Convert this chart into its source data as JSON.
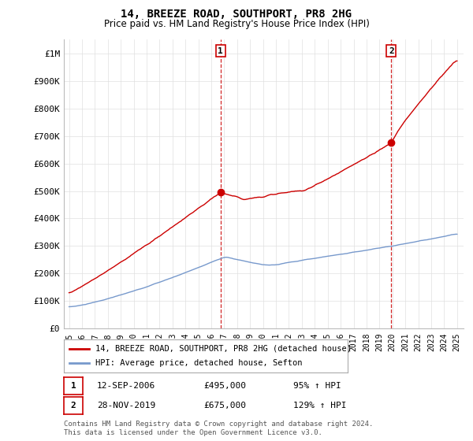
{
  "title": "14, BREEZE ROAD, SOUTHPORT, PR8 2HG",
  "subtitle": "Price paid vs. HM Land Registry's House Price Index (HPI)",
  "ylim": [
    0,
    1050000
  ],
  "yticks": [
    0,
    100000,
    200000,
    300000,
    400000,
    500000,
    600000,
    700000,
    800000,
    900000,
    1000000
  ],
  "ytick_labels": [
    "£0",
    "£100K",
    "£200K",
    "£300K",
    "£400K",
    "£500K",
    "£600K",
    "£700K",
    "£800K",
    "£900K",
    "£1M"
  ],
  "hpi_color": "#7799cc",
  "price_color": "#cc0000",
  "marker_color": "#cc0000",
  "annotation_box_color": "#cc0000",
  "dashed_line_color": "#cc0000",
  "legend_label_price": "14, BREEZE ROAD, SOUTHPORT, PR8 2HG (detached house)",
  "legend_label_hpi": "HPI: Average price, detached house, Sefton",
  "sale1_label": "1",
  "sale1_date": "12-SEP-2006",
  "sale1_price": "£495,000",
  "sale1_hpi": "95% ↑ HPI",
  "sale1_year": 2006.71,
  "sale1_value": 495000,
  "sale2_label": "2",
  "sale2_date": "28-NOV-2019",
  "sale2_price": "£675,000",
  "sale2_hpi": "129% ↑ HPI",
  "sale2_year": 2019.91,
  "sale2_value": 675000,
  "footnote1": "Contains HM Land Registry data © Crown copyright and database right 2024.",
  "footnote2": "This data is licensed under the Open Government Licence v3.0.",
  "background_color": "#ffffff",
  "grid_color": "#e0e0e0"
}
